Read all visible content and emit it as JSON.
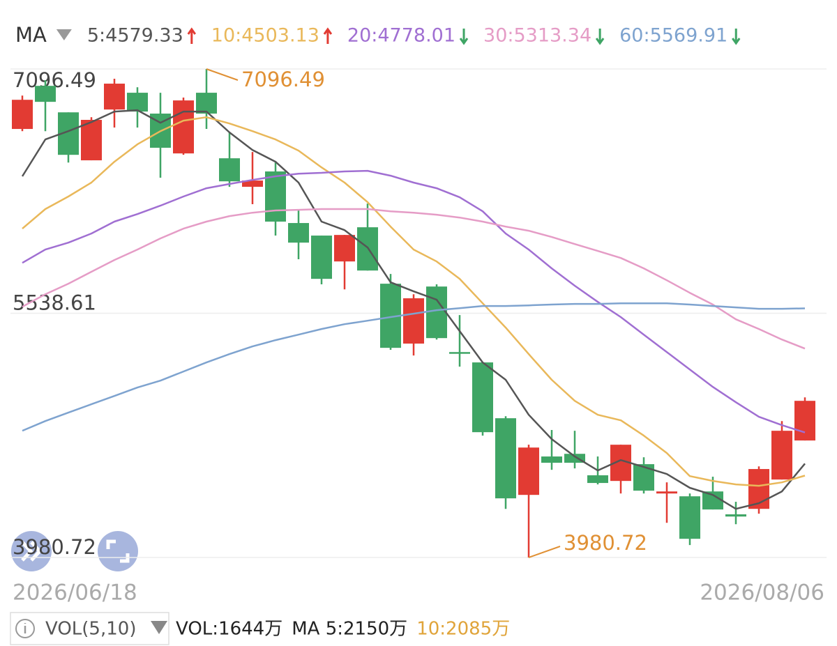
{
  "chart_data": {
    "type": "candlestick",
    "indicator": "MA",
    "categories": [
      "2026/06/18",
      null,
      null,
      null,
      null,
      null,
      null,
      null,
      null,
      null,
      null,
      null,
      null,
      null,
      null,
      null,
      null,
      null,
      null,
      null,
      null,
      null,
      null,
      null,
      null,
      null,
      null,
      null,
      null,
      null,
      null,
      null,
      null,
      null,
      "2026/08/06"
    ],
    "open": [
      6714,
      6989,
      6820,
      6514,
      6838,
      6945,
      6812,
      6558,
      6945,
      6527,
      6345,
      6443,
      6114,
      6034,
      5869,
      6087,
      5727,
      5345,
      5709,
      5291,
      5225,
      4869,
      4380,
      4625,
      4642,
      4505,
      4469,
      4576,
      4389,
      4371,
      4402,
      4256,
      4291,
      4478,
      4727
    ],
    "high": [
      6927,
      7025,
      6820,
      6789,
      7034,
      6980,
      6945,
      6914,
      7096.49,
      6692,
      6567,
      6500,
      6203,
      6034,
      6038,
      6238,
      5789,
      5660,
      5723,
      5527,
      5225,
      4882,
      4700,
      4794,
      4789,
      4625,
      4700,
      4620,
      4460,
      4389,
      4496,
      4336,
      4562,
      4851,
      5002
    ],
    "low": [
      6700,
      6700,
      6500,
      6514,
      6723,
      6723,
      6403,
      6549,
      6714,
      6345,
      6234,
      6034,
      5883,
      5723,
      5691,
      5811,
      5305,
      5269,
      5371,
      5198,
      4758,
      4291,
      3980.72,
      4540,
      4549,
      4447,
      4389,
      4389,
      4202,
      4060,
      4287,
      4193,
      4260,
      4478,
      4727
    ],
    "close": [
      6900,
      6887,
      6549,
      6772,
      7003,
      6825,
      6594,
      6896,
      6812,
      6380,
      6385,
      6123,
      5989,
      5758,
      6038,
      5811,
      5318,
      5634,
      5380,
      5282,
      4780,
      4358,
      4682,
      4585,
      4585,
      4456,
      4700,
      4407,
      4402,
      4100,
      4287,
      4242,
      4545,
      4789,
      4980
    ],
    "up_color": "#e23b33",
    "down_color": "#3fa565",
    "ylim": [
      3980.72,
      7096.49
    ],
    "yticks": [
      3980.72,
      5538.61,
      7096.49
    ],
    "grid": true,
    "high_label": "7096.49",
    "low_label": "3980.72",
    "annotation_color": "#e09034",
    "series": [
      {
        "name": "5:4579.33",
        "color": "#555555",
        "trend": "up",
        "values": [
          6412,
          6647,
          6700,
          6758,
          6825,
          6834,
          6754,
          6825,
          6825,
          6692,
          6580,
          6505,
          6372,
          6123,
          6069,
          5958,
          5736,
          5678,
          5625,
          5425,
          5225,
          5114,
          4891,
          4736,
          4625,
          4536,
          4602,
          4558,
          4513,
          4425,
          4380,
          4291,
          4327,
          4402,
          4579.33
        ]
      },
      {
        "name": "10:4503.13",
        "color": "#e9b85a",
        "trend": "up",
        "values": [
          6078,
          6203,
          6283,
          6372,
          6505,
          6616,
          6700,
          6767,
          6789,
          6749,
          6700,
          6647,
          6576,
          6469,
          6372,
          6247,
          6091,
          5945,
          5869,
          5758,
          5602,
          5447,
          5278,
          5114,
          4980,
          4891,
          4856,
          4758,
          4647,
          4500,
          4469,
          4447,
          4438,
          4460,
          4503.13
        ]
      },
      {
        "name": "20:4778.01",
        "color": "#a06fd2",
        "trend": "down",
        "values": [
          5860,
          5945,
          5989,
          6047,
          6123,
          6171,
          6225,
          6283,
          6336,
          6363,
          6389,
          6412,
          6429,
          6434,
          6443,
          6447,
          6416,
          6372,
          6336,
          6278,
          6189,
          6047,
          5945,
          5825,
          5714,
          5611,
          5514,
          5402,
          5291,
          5180,
          5069,
          4971,
          4878,
          4825,
          4778.01
        ]
      },
      {
        "name": "30:5313.34",
        "color": "#e59cc6",
        "trend": "down",
        "values": [
          5580,
          5660,
          5727,
          5803,
          5878,
          5945,
          6016,
          6078,
          6123,
          6158,
          6180,
          6194,
          6198,
          6203,
          6203,
          6203,
          6189,
          6180,
          6167,
          6149,
          6123,
          6091,
          6065,
          6025,
          5980,
          5936,
          5891,
          5825,
          5749,
          5669,
          5594,
          5500,
          5438,
          5371,
          5313.34
        ]
      },
      {
        "name": "60:5569.91",
        "color": "#7ea3cf",
        "trend": "down",
        "values": [
          4789,
          4851,
          4905,
          4958,
          5011,
          5065,
          5109,
          5167,
          5225,
          5278,
          5327,
          5367,
          5402,
          5438,
          5469,
          5491,
          5514,
          5536,
          5558,
          5571,
          5585,
          5585,
          5589,
          5594,
          5598,
          5598,
          5602,
          5602,
          5602,
          5594,
          5585,
          5576,
          5567,
          5567,
          5569.91
        ]
      }
    ]
  },
  "volume_bar": {
    "indicator": "VOL(5,10)",
    "items": [
      {
        "text": "VOL:1644万",
        "color": "#222222"
      },
      {
        "text": "MA 5:2150万",
        "color": "#222222"
      },
      {
        "text": "10:2085万",
        "color": "#e0a43a"
      }
    ]
  }
}
